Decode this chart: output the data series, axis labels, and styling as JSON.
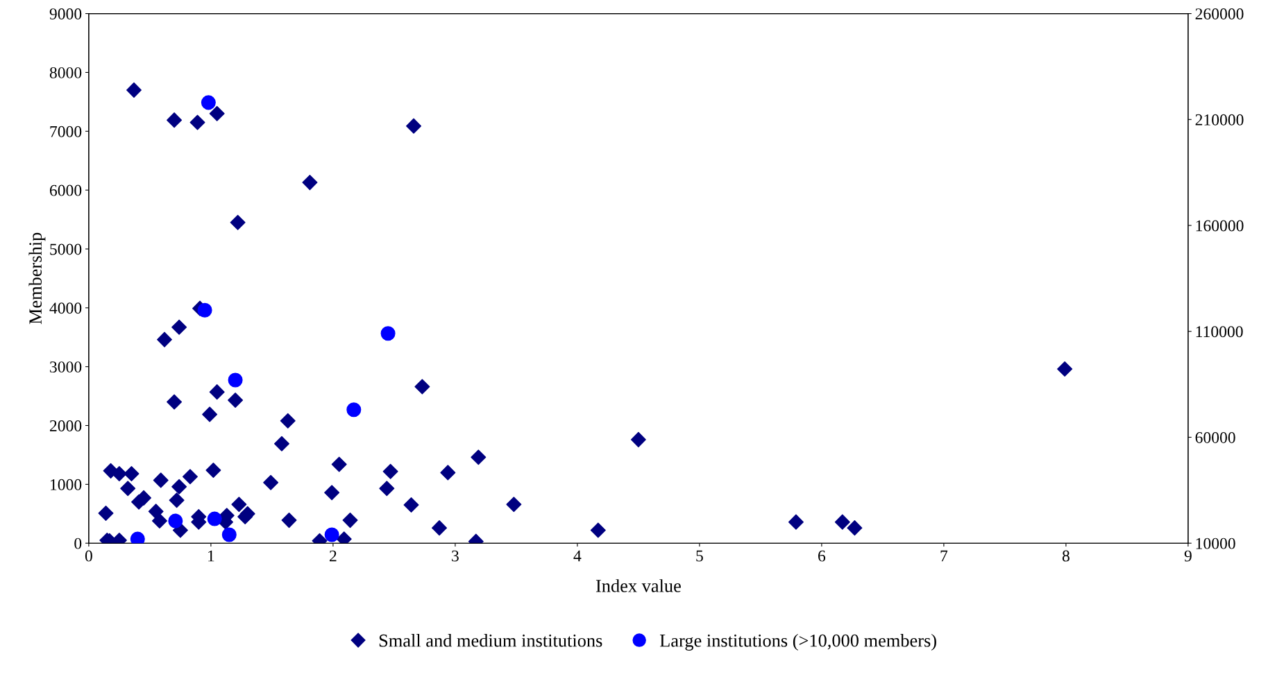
{
  "chart_data": {
    "type": "scatter",
    "xlabel": "Index value",
    "ylabel": "Membership",
    "xlim": [
      0,
      9
    ],
    "xticks": [
      0,
      1,
      2,
      3,
      4,
      5,
      6,
      7,
      8,
      9
    ],
    "ylim": [
      0,
      9000
    ],
    "yticks": [
      0,
      1000,
      2000,
      3000,
      4000,
      5000,
      6000,
      7000,
      8000,
      9000
    ],
    "y2lim": [
      10000,
      260000
    ],
    "y2ticks": [
      10000,
      60000,
      110000,
      160000,
      210000,
      260000
    ],
    "grid": false,
    "legend": "bottom",
    "series": [
      {
        "name": "Small and medium institutions",
        "color": "#000080",
        "marker": "diamond",
        "x": [
          0.37,
          0.7,
          0.89,
          1.05,
          2.66,
          1.81,
          1.22,
          0.91,
          0.74,
          0.62,
          0.7,
          1.05,
          1.2,
          0.99,
          1.63,
          1.58,
          2.73,
          7.99,
          4.5,
          0.18,
          0.25,
          0.35,
          1.02,
          0.83,
          0.59,
          0.32,
          0.45,
          0.41,
          0.74,
          0.72,
          0.55,
          0.58,
          0.14,
          1.49,
          2.05,
          1.99,
          2.47,
          2.44,
          2.94,
          3.19,
          3.48,
          2.64,
          1.23,
          1.3,
          1.28,
          1.12,
          1.13,
          0.9,
          0.9,
          0.75,
          1.64,
          2.14,
          2.87,
          4.17,
          5.79,
          6.17,
          6.27,
          0.15,
          0.17,
          0.25,
          1.89,
          2.09,
          3.17
        ],
        "values": [
          7700,
          7190,
          7150,
          7300,
          7090,
          6130,
          5450,
          3990,
          3670,
          3460,
          2400,
          2570,
          2430,
          2190,
          2080,
          1690,
          2660,
          2960,
          1760,
          1230,
          1180,
          1180,
          1240,
          1130,
          1070,
          930,
          770,
          700,
          960,
          730,
          540,
          380,
          510,
          1030,
          1340,
          860,
          1220,
          930,
          1200,
          1460,
          660,
          650,
          660,
          500,
          450,
          360,
          470,
          450,
          360,
          220,
          390,
          390,
          260,
          220,
          360,
          360,
          260,
          50,
          40,
          50,
          40,
          70,
          30
        ]
      },
      {
        "name": "Large institutions (>10,000 members)",
        "color": "#0000ff",
        "marker": "circle",
        "axis": "y2",
        "x": [
          0.98,
          0.95,
          2.45,
          1.2,
          2.17,
          0.71,
          1.03,
          0.4,
          1.15,
          1.99
        ],
        "values": [
          218000,
          120000,
          109000,
          87000,
          73000,
          20500,
          21500,
          12000,
          14000,
          14000
        ]
      }
    ]
  }
}
